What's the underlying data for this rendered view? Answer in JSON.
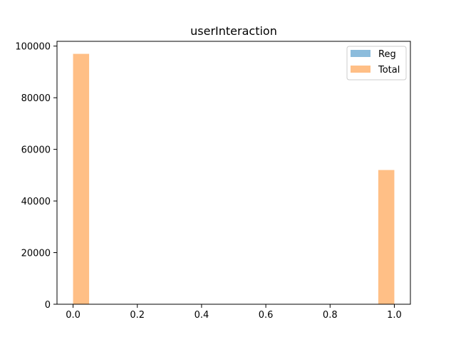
{
  "chart_data": {
    "type": "bar",
    "title": "userInteraction",
    "xlabel": "",
    "ylabel": "",
    "xlim": [
      -0.05,
      1.05
    ],
    "ylim": [
      0,
      101850
    ],
    "x_ticks": [
      0.0,
      0.2,
      0.4,
      0.6,
      0.8,
      1.0
    ],
    "x_tick_labels": [
      "0.0",
      "0.2",
      "0.4",
      "0.6",
      "0.8",
      "1.0"
    ],
    "y_ticks": [
      0,
      20000,
      40000,
      60000,
      80000,
      100000
    ],
    "y_tick_labels": [
      "0",
      "20000",
      "40000",
      "60000",
      "80000",
      "100000"
    ],
    "grid": false,
    "legend_position": "top-right",
    "bin_width": 0.05,
    "series": [
      {
        "name": "Reg",
        "color": "#8cbcdc",
        "bins": [
          {
            "x0": 0.0,
            "x1": 0.05,
            "value": 0
          },
          {
            "x0": 0.95,
            "x1": 1.0,
            "value": 0
          }
        ]
      },
      {
        "name": "Total",
        "color": "#ffbf86",
        "bins": [
          {
            "x0": 0.0,
            "x1": 0.05,
            "value": 97000
          },
          {
            "x0": 0.95,
            "x1": 1.0,
            "value": 52000
          }
        ]
      }
    ]
  }
}
